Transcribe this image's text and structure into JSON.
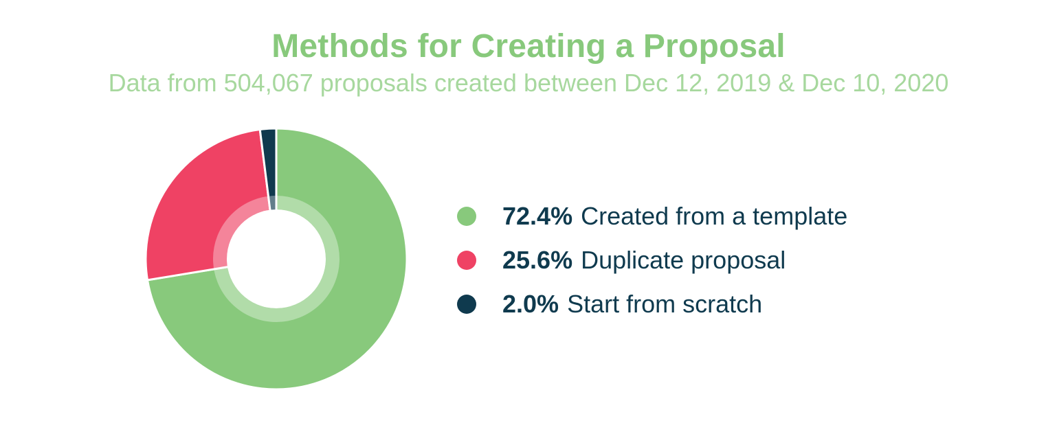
{
  "chart_data": {
    "type": "pie",
    "title": "Methods for Creating a Proposal",
    "subtitle": "Data from 504,067 proposals created between Dec 12, 2019 & Dec 10, 2020",
    "slices": [
      {
        "label": "Created from a template",
        "value": 72.4,
        "value_label": "72.4%",
        "color": "#88c97c"
      },
      {
        "label": "Duplicate proposal",
        "value": 25.6,
        "value_label": "25.6%",
        "color": "#ef4264"
      },
      {
        "label": "Start from scratch",
        "value": 2.0,
        "value_label": "2.0%",
        "color": "#0f3a4e"
      }
    ],
    "donut": true,
    "legend_position": "right"
  }
}
